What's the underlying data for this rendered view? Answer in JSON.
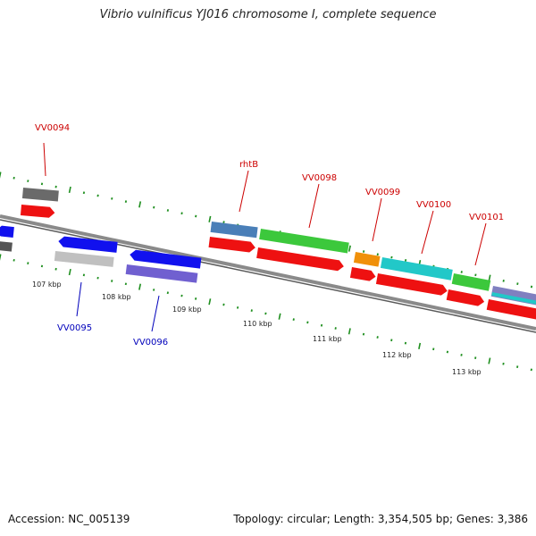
{
  "title": "Vibrio vulnificus YJ016 chromosome I, complete sequence",
  "footer": {
    "accession": "Accession: NC_005139",
    "summary": "Topology: circular; Length: 3,354,505 bp; Genes: 3,386"
  },
  "colors": {
    "background": "#ffffff",
    "backbone": "#8a8a8a",
    "tick": "#1f8f1f",
    "forward_label": "#cc0000",
    "reverse_label": "#0000bb"
  },
  "scale_labels": [
    "107 kbp",
    "108 kbp",
    "109 kbp",
    "110 kbp",
    "111 kbp",
    "112 kbp",
    "113 kbp"
  ],
  "genes_top": [
    {
      "name": "",
      "color": "#6a6a6a"
    },
    {
      "name": "rhtB",
      "color": "#4a7fb8"
    },
    {
      "name": "",
      "color": "#3cc83c"
    },
    {
      "name": "",
      "color": "#f0900a"
    },
    {
      "name": "",
      "color": "#22c8c8"
    },
    {
      "name": "",
      "color": "#3cc83c"
    },
    {
      "name": "",
      "color": "#8080c0"
    }
  ],
  "cds_top": [
    {
      "name": "VV0094",
      "color": "#ee1111"
    },
    {
      "name": "",
      "color": "#ee1111"
    },
    {
      "name": "VV0098",
      "color": "#ee1111"
    },
    {
      "name": "VV0099",
      "color": "#ee1111"
    },
    {
      "name": "VV0100",
      "color": "#ee1111"
    },
    {
      "name": "VV0101",
      "color": "#ee1111"
    },
    {
      "name": "",
      "color": "#ee1111"
    }
  ],
  "genes_bottom": [
    {
      "name": "",
      "color": "#1111ee"
    },
    {
      "name": "VV0095",
      "color": "#1111ee"
    },
    {
      "name": "VV0096",
      "color": "#1111ee"
    },
    {
      "name": "",
      "color": "#555555"
    },
    {
      "name": "",
      "color": "#c0c0c0"
    },
    {
      "name": "",
      "color": "#7060d0"
    }
  ],
  "gene_labels": [
    "VV0094",
    "rhtB",
    "VV0098",
    "VV0099",
    "VV0100",
    "VV0101",
    "VV0095",
    "VV0096"
  ]
}
